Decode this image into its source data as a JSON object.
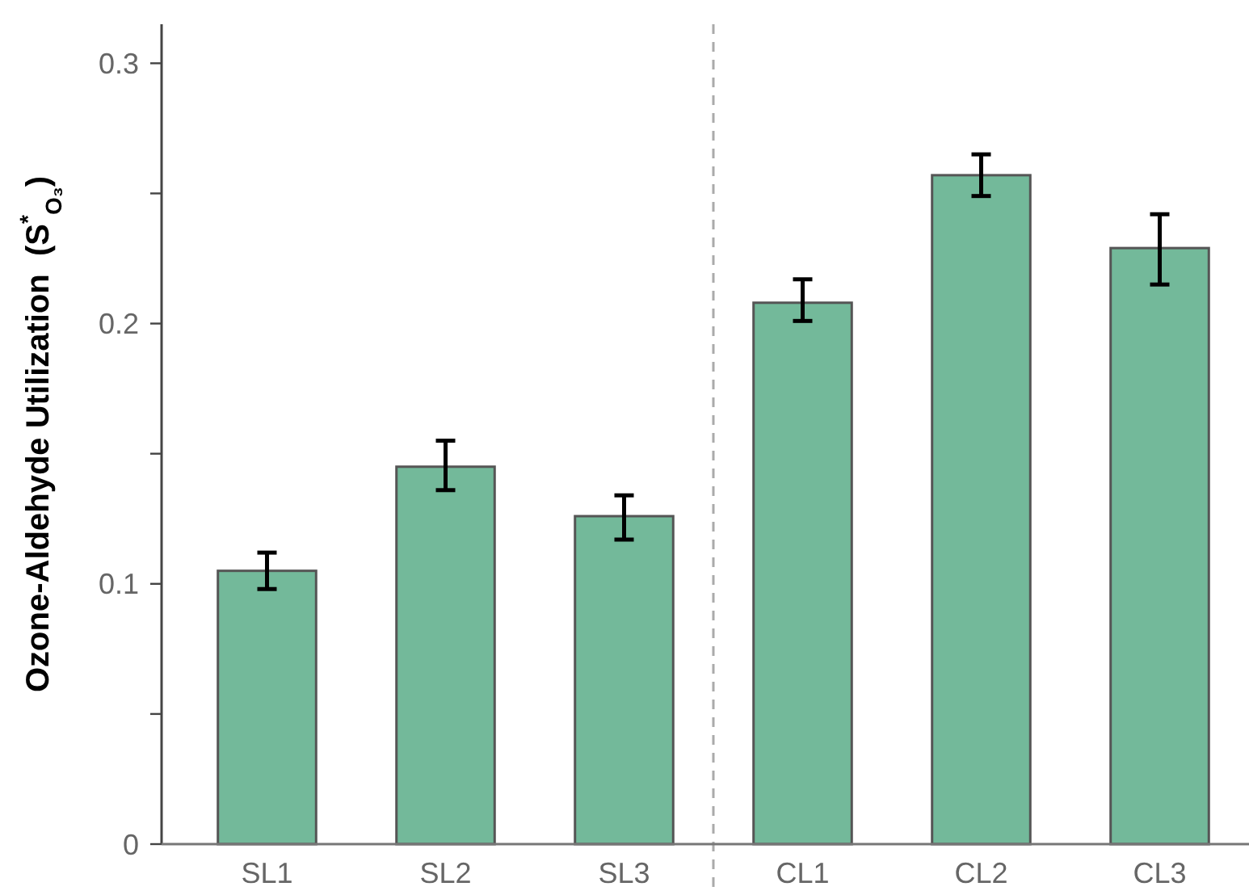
{
  "chart_data": {
    "type": "bar",
    "ylabel": "Ozone-Aldehyde Utilization  (S$^{*}$$_{O₃}$)",
    "categories": [
      "SL1",
      "SL2",
      "SL3",
      "CL1",
      "CL2",
      "CL3"
    ],
    "values": [
      0.105,
      0.145,
      0.126,
      0.208,
      0.257,
      0.229
    ],
    "errors": [
      [
        0.098,
        0.112
      ],
      [
        0.136,
        0.155
      ],
      [
        0.117,
        0.134
      ],
      [
        0.201,
        0.217
      ],
      [
        0.249,
        0.265
      ],
      [
        0.215,
        0.242
      ]
    ],
    "color": "#73b99a",
    "ylim": [
      0,
      0.315
    ],
    "yticks": [
      0,
      {
        "value": 0.05,
        "label": null
      },
      0.1,
      {
        "value": 0.15,
        "label": null
      },
      0.2,
      {
        "value": 0.25,
        "label": null
      },
      0.3
    ],
    "grid": false
  }
}
